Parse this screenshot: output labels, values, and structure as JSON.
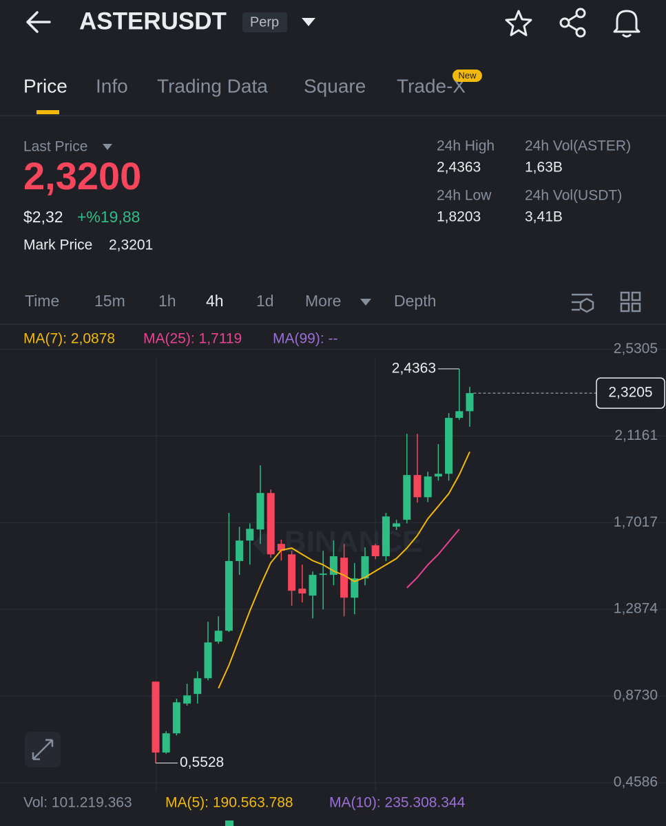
{
  "header": {
    "title": "ASTERUSDT",
    "badge": "Perp"
  },
  "tabs": [
    "Price",
    "Info",
    "Trading Data",
    "Square",
    "Trade-X"
  ],
  "new_badge": "New",
  "price": {
    "label": "Last Price",
    "last": "2,3200",
    "usd": "$2,32",
    "change": "+%19,88",
    "mark_label": "Mark Price",
    "mark": "2,3201"
  },
  "stats": [
    {
      "label": "24h High",
      "value": "2,4363"
    },
    {
      "label": "24h Vol(ASTER)",
      "value": "1,63B"
    },
    {
      "label": "24h Low",
      "value": "1,8203"
    },
    {
      "label": "24h Vol(USDT)",
      "value": "3,41B"
    }
  ],
  "intervals": [
    "Time",
    "15m",
    "1h",
    "4h",
    "1d",
    "More",
    "Depth"
  ],
  "chart_data": {
    "type": "candlestick",
    "legend": [
      {
        "text": "MA(7): 2,0878",
        "color": "#f0b90b"
      },
      {
        "text": "MA(25): 1,7119",
        "color": "#e84393"
      },
      {
        "text": "MA(99): --",
        "color": "#9b6fd6"
      }
    ],
    "ylim": [
      0.4,
      2.62
    ],
    "yticks": [
      {
        "value": 2.5305,
        "label": "2,5305"
      },
      {
        "value": 2.1161,
        "label": "2,1161"
      },
      {
        "value": 1.7017,
        "label": "1,7017"
      },
      {
        "value": 1.2874,
        "label": "1,2874"
      },
      {
        "value": 0.873,
        "label": "0,8730"
      },
      {
        "value": 0.4586,
        "label": "0,4586"
      }
    ],
    "up_color": "#2ebd85",
    "down_color": "#f6465d",
    "candles": {
      "open": [
        0.942,
        0.603,
        0.695,
        0.837,
        0.883,
        0.958,
        1.133,
        1.185,
        1.518,
        1.616,
        1.669,
        1.843,
        1.6,
        1.55,
        1.386,
        1.353,
        1.452,
        1.452,
        1.534,
        1.343,
        1.435,
        1.593,
        1.541,
        1.682,
        1.715,
        1.929,
        1.823,
        1.922,
        1.935,
        2.202,
        2.234
      ],
      "high": [
        0.942,
        0.705,
        0.86,
        0.932,
        0.991,
        1.228,
        1.254,
        1.748,
        1.682,
        1.698,
        1.975,
        1.86,
        1.62,
        1.567,
        1.501,
        1.468,
        1.567,
        1.616,
        1.6,
        1.508,
        1.583,
        1.6,
        1.748,
        1.715,
        2.126,
        2.126,
        1.945,
        2.077,
        2.225,
        2.4363,
        2.35
      ],
      "low": [
        0.5528,
        0.597,
        0.685,
        0.827,
        0.837,
        0.948,
        1.123,
        1.179,
        1.452,
        1.501,
        1.6,
        1.534,
        1.52,
        1.304,
        1.32,
        1.244,
        1.287,
        1.402,
        1.254,
        1.264,
        1.402,
        1.527,
        1.518,
        1.666,
        1.698,
        1.797,
        1.8,
        1.902,
        1.902,
        2.192,
        2.16
      ],
      "close": [
        0.603,
        0.695,
        0.843,
        0.876,
        0.958,
        1.129,
        1.185,
        1.518,
        1.616,
        1.672,
        1.843,
        1.55,
        1.567,
        1.376,
        1.363,
        1.452,
        1.458,
        1.541,
        1.343,
        1.435,
        1.541,
        1.541,
        1.731,
        1.698,
        1.929,
        1.823,
        1.922,
        1.935,
        2.202,
        2.234,
        2.3205
      ]
    },
    "series": [
      {
        "color": "#f0b90b",
        "values": [
          null,
          null,
          null,
          null,
          null,
          null,
          0.91,
          1.02,
          1.15,
          1.28,
          1.4,
          1.51,
          1.57,
          1.58,
          1.55,
          1.52,
          1.5,
          1.47,
          1.45,
          1.42,
          1.44,
          1.47,
          1.5,
          1.53,
          1.58,
          1.64,
          1.72,
          1.78,
          1.84,
          1.93,
          2.04
        ]
      },
      {
        "color": "#e84393",
        "values": [
          null,
          null,
          null,
          null,
          null,
          null,
          null,
          null,
          null,
          null,
          null,
          null,
          null,
          null,
          null,
          null,
          null,
          null,
          null,
          null,
          null,
          null,
          null,
          null,
          1.39,
          1.44,
          1.5,
          1.55,
          1.61,
          1.67,
          null
        ]
      }
    ],
    "high_marker": {
      "value": 2.4363,
      "label": "2,4363"
    },
    "low_marker": {
      "value": 0.5528,
      "label": "0,5528"
    },
    "last_price": {
      "value": 2.3205,
      "label": "2,3205"
    }
  },
  "volume": [
    {
      "text": "Vol: 101.219.363",
      "color": "#848e9c"
    },
    {
      "text": "MA(5): 190.563.788",
      "color": "#f0b90b"
    },
    {
      "text": "MA(10): 235.308.344",
      "color": "#9b6fd6"
    }
  ]
}
